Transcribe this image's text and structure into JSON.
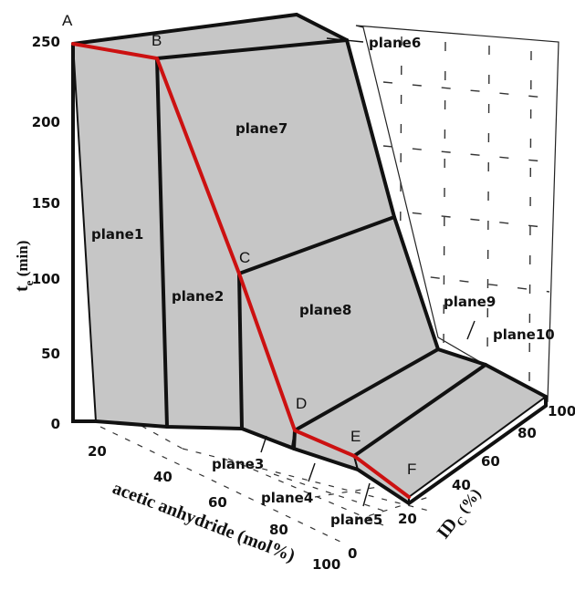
{
  "axes": {
    "vertical": {
      "label_main": "t",
      "label_sub": "e",
      "label_unit": " (min)",
      "ticks": [
        "250",
        "200",
        "150",
        "100",
        "50",
        "0"
      ]
    },
    "x": {
      "label": "acetic anhydride (mol%)",
      "ticks": [
        "20",
        "40",
        "60",
        "80",
        "100"
      ]
    },
    "y": {
      "label_main": "ID",
      "label_sub": "C",
      "label_unit": " (%)",
      "ticks": [
        "0",
        "20",
        "40",
        "60",
        "80",
        "100"
      ]
    }
  },
  "points": [
    "A",
    "B",
    "C",
    "D",
    "E",
    "F"
  ],
  "planes": [
    "plane1",
    "plane2",
    "plane3",
    "plane4",
    "plane5",
    "plane6",
    "plane7",
    "plane8",
    "plane9",
    "plane10"
  ]
}
